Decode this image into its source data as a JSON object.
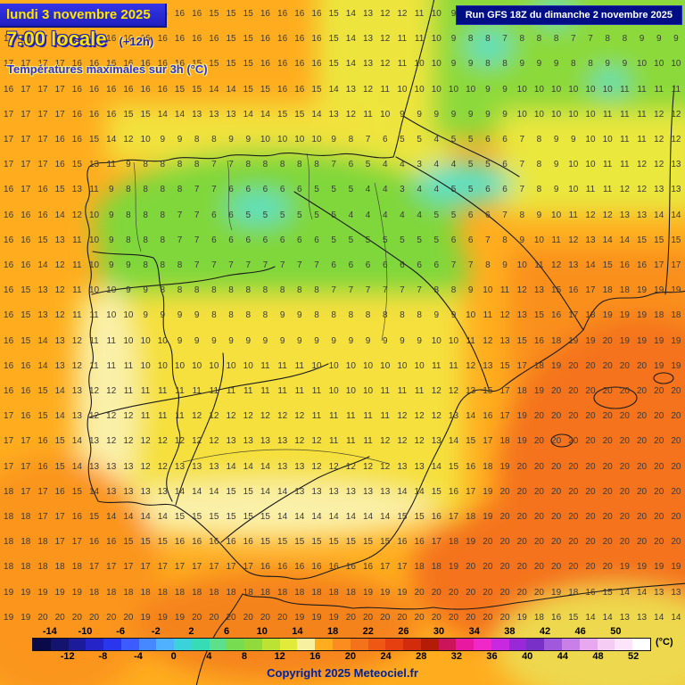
{
  "header": {
    "date_line": "lundi 3 novembre 2025",
    "time_line": "7:00 locale",
    "time_offset": "(+12h)",
    "subtitle": "Températures maximales sur 3h (°C)",
    "run_info": "Run GFS 18Z du dimanche 2 novembre 2025"
  },
  "scale": {
    "unit": "(°C)",
    "top_labels": [
      "-14",
      "-10",
      "-6",
      "-2",
      "2",
      "6",
      "10",
      "14",
      "18",
      "22",
      "26",
      "30",
      "34",
      "38",
      "42",
      "46",
      "50"
    ],
    "bottom_labels": [
      "-12",
      "-8",
      "-4",
      "0",
      "4",
      "8",
      "12",
      "16",
      "20",
      "24",
      "28",
      "32",
      "36",
      "40",
      "44",
      "48",
      "52"
    ],
    "colors": [
      "#0a0a4a",
      "#14146e",
      "#1c1c9a",
      "#2424c8",
      "#2a36ee",
      "#3c5cff",
      "#4688ff",
      "#50b2ff",
      "#3cd2da",
      "#36dcb4",
      "#5ce08c",
      "#78dc50",
      "#90da3c",
      "#bce234",
      "#e2ea3a",
      "#f6f0a0",
      "#ffac1e",
      "#fb8c1e",
      "#f4731a",
      "#ee5814",
      "#e64010",
      "#d22c0c",
      "#b41c08",
      "#cc1458",
      "#e818a0",
      "#f028c8",
      "#c828e0",
      "#9828d8",
      "#7830c8",
      "#a058dc",
      "#c880e8",
      "#e8a8f0",
      "#f4ccf4",
      "#fce4fa",
      "#ffffff"
    ]
  },
  "map": {
    "grid": [
      "16 16 16 16 16 16 16 16 16 16 16 16 15 15 15 16 16 16 16 15 14 13 12 12 11 10 9 8 8 7 8 7 8 8 9 9 8 7 8 9",
      "17 17 17 17 16 16 16 16 16 16 16 16 16 15 15 16 16 16 16 15 14 13 12 11 11 10 9 8 8 7 8 8 8 7 7 8 8 9 9 9",
      "17 17 17 17 16 16 16 16 16 16 16 15 15 15 15 16 16 16 16 15 14 13 12 11 10 10 9 9 8 8 9 9 9 8 8 9 9 10 10 10",
      "16 17 17 17 16 16 16 16 16 16 15 15 14 14 15 15 16 16 15 14 13 12 11 10 10 10 10 10 9 9 10 10 10 10 10 10 11 11 11 11",
      "17 17 17 17 16 16 16 15 15 14 14 13 13 13 14 14 15 15 14 13 12 11 10 9 9 9 9 9 9 9 10 10 10 10 10 11 11 11 12 12",
      "17 17 17 16 16 15 14 12 10 9 9 8 8 9 9 10 10 10 10 9 8 7 6 5 5 4 5 5 6 6 7 8 9 9 10 10 11 11 12 12",
      "17 17 17 16 15 13 11 9 8 8 8 8 7 7 8 8 8 8 8 7 6 5 4 4 3 4 4 5 5 6 7 8 9 10 10 11 11 12 12 13",
      "16 17 16 15 13 11 9 8 8 8 8 7 7 6 6 6 6 6 5 5 5 4 4 3 4 4 5 5 6 6 7 8 9 10 11 11 12 12 13 13",
      "16 16 16 14 12 10 9 8 8 8 7 7 6 6 5 5 5 5 5 5 4 4 4 4 4 5 5 6 6 7 8 9 10 11 12 12 13 13 14 14",
      "16 16 15 13 11 10 9 8 8 8 7 7 6 6 6 6 6 6 6 5 5 5 5 5 5 5 6 6 7 8 9 10 11 12 13 14 14 15 15 15",
      "16 16 14 12 11 10 9 9 8 8 8 7 7 7 7 7 7 7 7 6 6 6 6 6 6 6 7 7 8 9 10 11 12 13 14 15 16 16 17 17",
      "16 15 13 12 11 10 10 9 9 8 8 8 8 8 8 8 8 8 8 7 7 7 7 7 7 8 8 9 10 11 12 13 15 16 17 18 18 19 19 19",
      "16 15 13 12 11 11 10 10 9 9 9 9 8 8 8 8 9 9 8 8 8 8 8 8 8 9 9 10 11 12 13 15 16 17 18 19 19 19 18 18",
      "16 15 14 13 12 11 11 10 10 10 9 9 9 9 9 9 9 9 9 9 9 9 9 9 9 10 10 11 12 13 15 16 18 19 19 20 19 19 19 19",
      "16 16 14 13 12 11 11 11 10 10 10 10 10 10 10 11 11 11 10 10 10 10 10 10 10 11 11 12 13 15 17 18 19 20 20 20 20 20 19 19",
      "16 16 15 14 13 12 12 11 11 11 11 11 11 11 11 11 11 11 11 10 10 10 11 11 11 12 12 13 15 17 18 19 20 20 20 20 20 20 20 20",
      "17 16 15 14 13 12 12 12 11 11 11 12 12 12 12 12 12 12 11 11 11 11 11 12 12 12 13 14 16 17 19 20 20 20 20 20 20 20 20 20",
      "17 17 16 15 14 13 12 12 12 12 12 12 12 13 13 13 13 12 12 11 11 11 12 12 12 13 14 15 17 18 19 20 20 20 20 20 20 20 20 20",
      "17 17 16 15 14 13 13 13 12 12 13 13 13 14 14 14 13 13 12 12 12 12 12 13 13 14 15 16 18 19 20 20 20 20 20 20 20 20 20 20",
      "18 17 17 16 15 14 13 13 13 13 14 14 14 15 15 14 14 13 13 13 13 13 13 14 14 15 16 17 19 20 20 20 20 20 20 20 20 20 20 20",
      "18 18 17 17 16 15 14 14 14 14 15 15 15 15 15 15 14 14 14 14 14 14 14 15 15 16 17 18 19 20 20 20 20 20 20 20 20 20 20 20",
      "18 18 18 17 17 16 16 15 15 15 16 16 16 16 16 15 15 15 15 15 15 15 15 16 16 17 18 19 20 20 20 20 20 20 20 20 20 20 20 20",
      "18 18 18 18 18 17 17 17 17 17 17 17 17 17 17 16 16 16 16 16 16 16 17 17 18 18 19 20 20 20 20 20 20 20 20 20 19 19 19 19",
      "19 19 19 19 19 18 18 18 18 18 18 18 18 18 18 18 18 18 18 18 18 19 19 19 20 20 20 20 20 20 20 20 19 18 16 15 14 14 13 13",
      "19 19 20 20 20 20 20 20 19 19 19 20 20 20 20 20 20 19 19 19 20 20 20 20 20 20 20 20 20 20 19 18 16 15 14 14 13 13 14 14"
    ]
  },
  "footer": {
    "copyright": "Copyright 2025 Meteociel.fr"
  }
}
